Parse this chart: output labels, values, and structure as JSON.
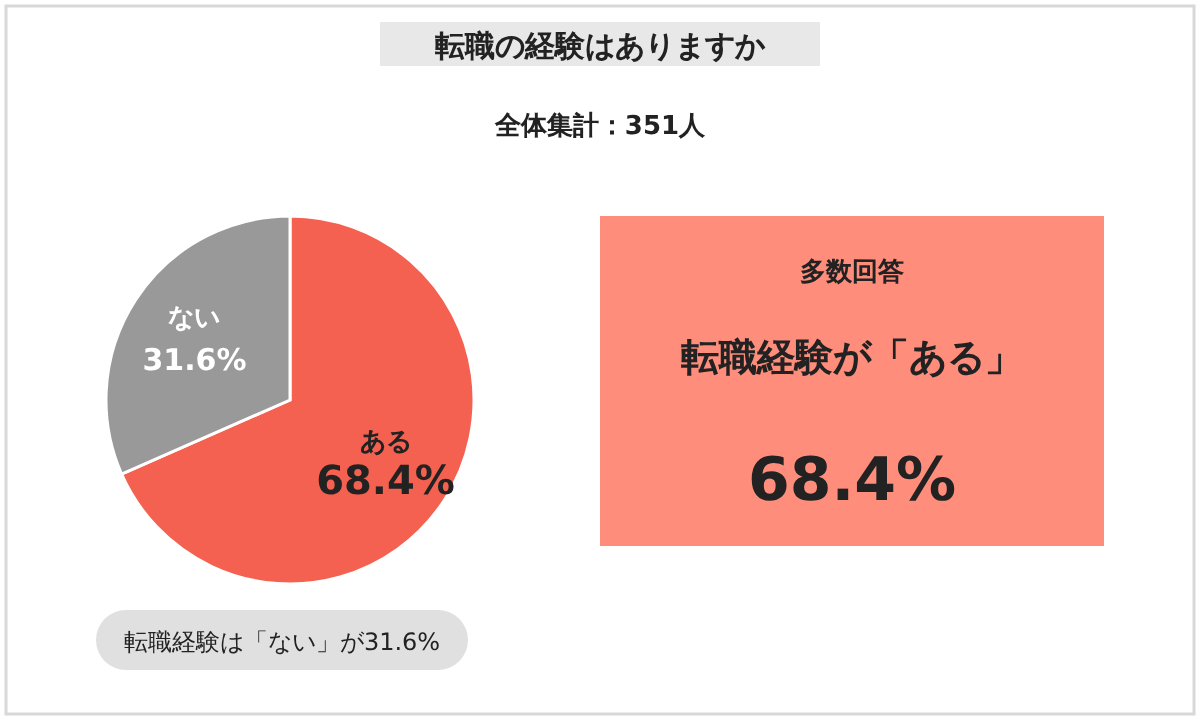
{
  "chart_data": [
    {
      "type": "pie",
      "title": "転職の経験はありますか",
      "subtitle": "全体集計：351人",
      "categories": [
        "ある",
        "ない"
      ],
      "values": [
        68.4,
        31.6
      ],
      "colors": [
        "#f46150",
        "#999999"
      ],
      "value_labels": [
        "68.4%",
        "31.6%"
      ],
      "annotations": [
        "転職経験は「ない」が31.6%"
      ]
    },
    {
      "type": "other",
      "title": "多数回答",
      "annotations": [
        "転職経験が「ある」",
        "68.4%"
      ]
    }
  ]
}
